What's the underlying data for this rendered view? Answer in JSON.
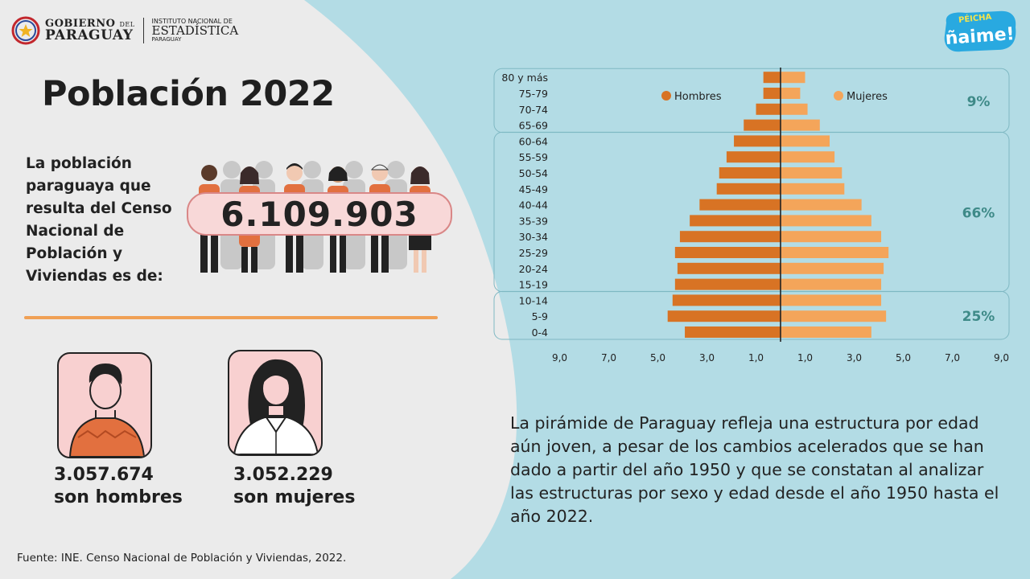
{
  "header": {
    "gobierno_line1": "GOBIERNO",
    "gobierno_del": "DEL",
    "gobierno_line2": "PARAGUAY",
    "ine_line1": "INSTITUTO NACIONAL DE",
    "ine_line2": "ESTADÍSTICA",
    "ine_line3": "PARAGUAY",
    "brand_top": "PÉICHA",
    "brand_main": "ñaime!"
  },
  "title": "Población 2022",
  "intro_text": "La población paraguaya que resulta del Censo Nacional de Población y Viviendas es de:",
  "total_population": "6.109.903",
  "men": {
    "number": "3.057.674",
    "label": "son hombres"
  },
  "women": {
    "number": "3.052.229",
    "label": "son mujeres"
  },
  "description": "La pirámide de Paraguay refleja una estructura por edad aún joven, a pesar de los cambios acelerados que se han dado a partir del año 1950 y que se constatan al analizar las estructuras por sexo y edad desde el año 1950 hasta el año 2022.",
  "source": "Fuente: INE. Censo Nacional de Población y Viviendas, 2022.",
  "colors": {
    "hombres": "#d87324",
    "mujeres": "#f4a55a",
    "accent_text": "#3e8a88",
    "left_bg": "#ebebeb",
    "right_bg": "#b3dce5"
  },
  "chart_data": {
    "type": "bar",
    "subtype": "population-pyramid",
    "categories": [
      "0-4",
      "5-9",
      "10-14",
      "15-19",
      "20-24",
      "25-29",
      "30-34",
      "35-39",
      "40-44",
      "45-49",
      "50-54",
      "55-59",
      "60-64",
      "65-69",
      "70-74",
      "75-79",
      "80 y más"
    ],
    "series": [
      {
        "name": "Hombres",
        "values": [
          3.9,
          4.6,
          4.4,
          4.3,
          4.2,
          4.3,
          4.1,
          3.7,
          3.3,
          2.6,
          2.5,
          2.2,
          1.9,
          1.5,
          1.0,
          0.7,
          0.7
        ]
      },
      {
        "name": "Mujeres",
        "values": [
          3.7,
          4.3,
          4.1,
          4.1,
          4.2,
          4.4,
          4.1,
          3.7,
          3.3,
          2.6,
          2.5,
          2.2,
          2.0,
          1.6,
          1.1,
          0.8,
          1.0
        ]
      }
    ],
    "xlim": [
      -9,
      9
    ],
    "x_ticks": [
      "9,0",
      "7,0",
      "5,0",
      "3,0",
      "1,0",
      "1,0",
      "3,0",
      "5,0",
      "7,0",
      "9,0"
    ],
    "x_tick_values": [
      -9,
      -7,
      -5,
      -3,
      -1,
      1,
      3,
      5,
      7,
      9
    ],
    "groups": [
      {
        "label": "9%",
        "from": "65-69",
        "to": "80 y más"
      },
      {
        "label": "66%",
        "from": "15-19",
        "to": "60-64"
      },
      {
        "label": "25%",
        "from": "0-4",
        "to": "10-14"
      }
    ],
    "legend_position": "top"
  }
}
